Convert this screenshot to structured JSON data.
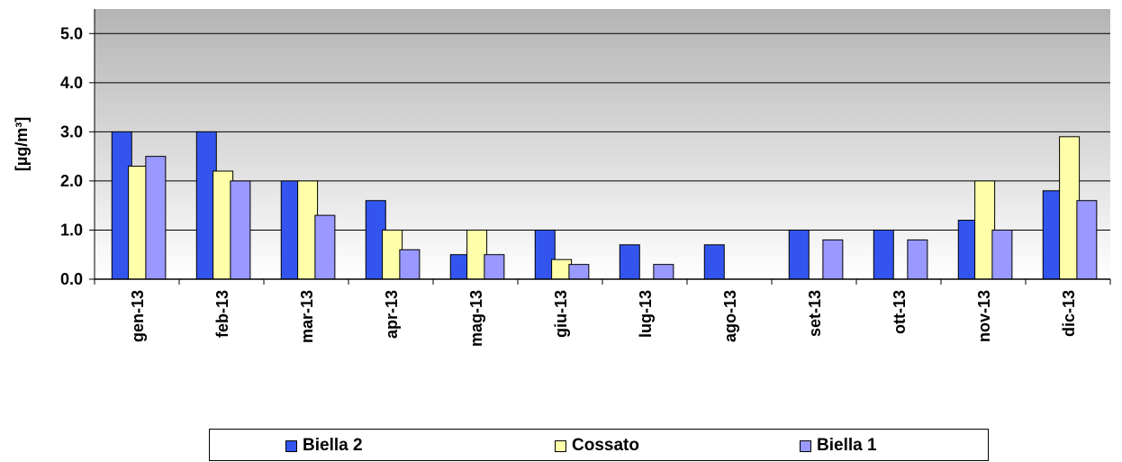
{
  "chart_data": {
    "type": "bar",
    "categories": [
      "gen-13",
      "feb-13",
      "mar-13",
      "apr-13",
      "mag-13",
      "giu-13",
      "lug-13",
      "ago-13",
      "set-13",
      "ott-13",
      "nov-13",
      "dic-13"
    ],
    "series": [
      {
        "name": "Biella 2",
        "color": "#3355ee",
        "values": [
          3.0,
          3.0,
          2.0,
          1.6,
          0.5,
          1.0,
          0.7,
          0.7,
          1.0,
          1.0,
          1.2,
          1.8
        ]
      },
      {
        "name": "Cossato",
        "color": "#ffffaa",
        "values": [
          2.3,
          2.2,
          2.0,
          1.0,
          1.0,
          0.4,
          null,
          null,
          null,
          null,
          2.0,
          2.9
        ]
      },
      {
        "name": "Biella 1",
        "color": "#9999ff",
        "values": [
          2.5,
          2.0,
          1.3,
          0.6,
          0.5,
          0.3,
          0.3,
          null,
          0.8,
          0.8,
          1.0,
          1.6
        ]
      }
    ],
    "ylabel": "[µg/m³]",
    "xlabel": "",
    "ylim": [
      0,
      5.5
    ],
    "yticks": [
      "0.0",
      "1.0",
      "2.0",
      "3.0",
      "4.0",
      "5.0"
    ],
    "grid": true,
    "legend_position": "bottom"
  }
}
